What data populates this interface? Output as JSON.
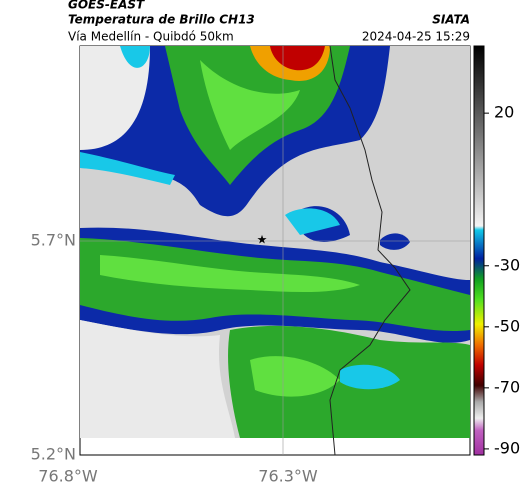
{
  "header": {
    "title": "GOES-EAST",
    "subtitle": "Temperatura de Brillo CH13",
    "location": "Vía Medellín - Quibdó 50km",
    "source": "SIATA",
    "datetime": "2024-04-25 15:29"
  },
  "axes": {
    "lat_ticks": [
      "5.7°N",
      "5.2°N"
    ],
    "lon_ticks": [
      "76.8°W",
      "76.3°W"
    ]
  },
  "colorbar": {
    "lim": [
      -92,
      42
    ],
    "ticks": [
      20,
      -30,
      -50,
      -70,
      -90
    ]
  }
}
